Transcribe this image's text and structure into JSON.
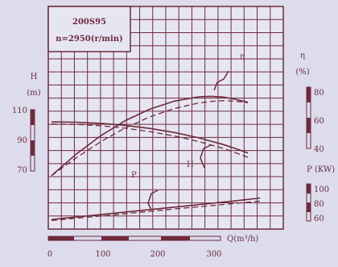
{
  "chart_data": {
    "type": "line",
    "model": "200S95",
    "speed": "n=2950(r/min)",
    "xlabel": "Q(m³/h)",
    "x_ticks": [
      "0",
      "100",
      "200",
      "300"
    ],
    "xlim": [
      0,
      340
    ],
    "axes": {
      "H": {
        "label": "H",
        "unit": "(m)",
        "ticks": [
          "110",
          "90",
          "70"
        ],
        "range": [
          70,
          110
        ]
      },
      "eta": {
        "label": "η",
        "unit": "(%)",
        "ticks": [
          "80",
          "60",
          "40"
        ],
        "range": [
          40,
          80
        ]
      },
      "P": {
        "label": "P",
        "unit": "(KW)",
        "ticks": [
          "100",
          "80",
          "60"
        ],
        "range": [
          60,
          100
        ]
      }
    },
    "curve_labels": {
      "eta": "η",
      "H": "H",
      "P": "P"
    },
    "grid": true,
    "series": [
      {
        "name": "H",
        "axis": "H",
        "style": "solid",
        "x": [
          0,
          40,
          80,
          120,
          160,
          200,
          240,
          280,
          300,
          320
        ],
        "y": [
          104,
          103.8,
          103,
          101.7,
          99.6,
          96.9,
          93.3,
          88.8,
          86.1,
          83.2
        ]
      },
      {
        "name": "H",
        "axis": "H",
        "style": "dashed",
        "x": [
          0,
          40,
          80,
          120,
          160,
          200,
          240,
          280,
          300,
          320
        ],
        "y": [
          102.6,
          102.3,
          101.4,
          99.8,
          97.5,
          94.6,
          90.8,
          86.2,
          83.3,
          80.3
        ]
      },
      {
        "name": "η",
        "axis": "eta",
        "style": "solid",
        "x": [
          0,
          40,
          80,
          120,
          160,
          200,
          240,
          260,
          280,
          300,
          320
        ],
        "y": [
          40.8,
          50.1,
          58.1,
          64.7,
          69.7,
          73.2,
          75.1,
          75.3,
          75,
          74,
          72.7
        ]
      },
      {
        "name": "η",
        "axis": "eta",
        "style": "dashed",
        "x": [
          0,
          40,
          80,
          120,
          160,
          200,
          240,
          260,
          280,
          300,
          320
        ],
        "y": [
          40.8,
          48.5,
          55.5,
          61.5,
          66.3,
          70,
          72.4,
          73.1,
          73.4,
          73.2,
          72.5
        ]
      },
      {
        "name": "P",
        "axis": "P",
        "style": "solid",
        "x": [
          0,
          100,
          200,
          300,
          340
        ],
        "y": [
          63.2,
          68.4,
          73.5,
          78.7,
          81
        ]
      },
      {
        "name": "P",
        "axis": "P",
        "style": "dashed",
        "x": [
          0,
          100,
          200,
          300,
          340
        ],
        "y": [
          62.4,
          67.1,
          71.9,
          76.6,
          78.5
        ]
      }
    ]
  }
}
